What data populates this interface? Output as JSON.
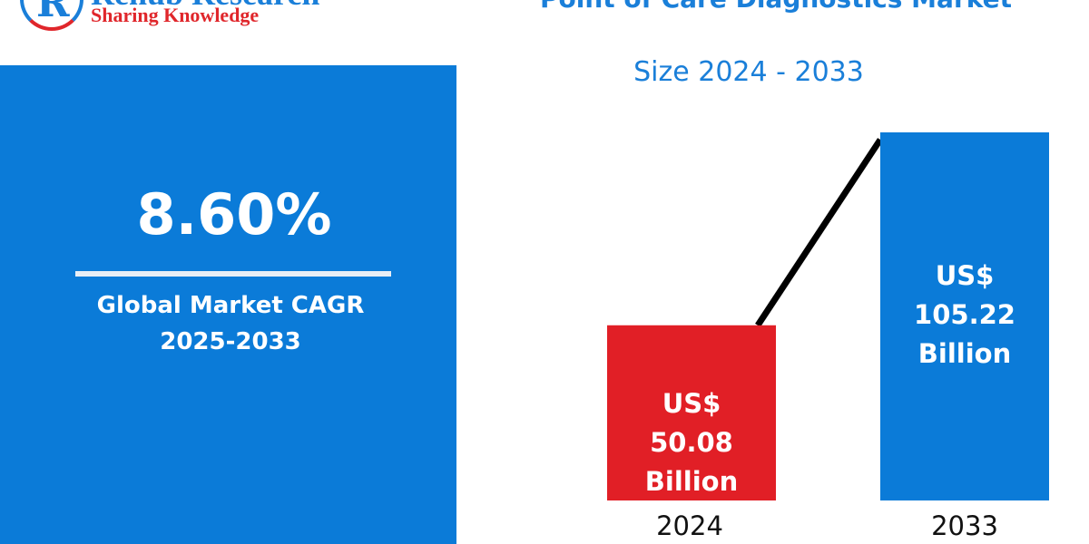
{
  "logo": {
    "name": "Renub Research",
    "tagline": "Sharing Knowledge",
    "letter": "R"
  },
  "cagr": {
    "value": "8.60%",
    "label": "Global Market CAGR",
    "period": "2025-2033"
  },
  "title": "Point of Care Diagnostics Market",
  "subtitle": "Size 2024 - 2033",
  "colors": {
    "blue": "#0b7bd8",
    "red": "#e11f26",
    "trend_line": "#000000"
  },
  "chart_data": {
    "type": "bar",
    "title": "Point of Care Diagnostics Market",
    "subtitle": "Size 2024 - 2033",
    "categories": [
      "2024",
      "2033"
    ],
    "values": [
      50.08,
      105.22
    ],
    "unit": "US$ Billion",
    "data_labels": [
      {
        "prefix": "US$",
        "value": "50.08",
        "suffix": "Billion"
      },
      {
        "prefix": "US$",
        "value": "105.22",
        "suffix": "Billion"
      }
    ],
    "bar_colors": [
      "#e11f26",
      "#0b7bd8"
    ],
    "trend_line": true,
    "grid": false
  }
}
